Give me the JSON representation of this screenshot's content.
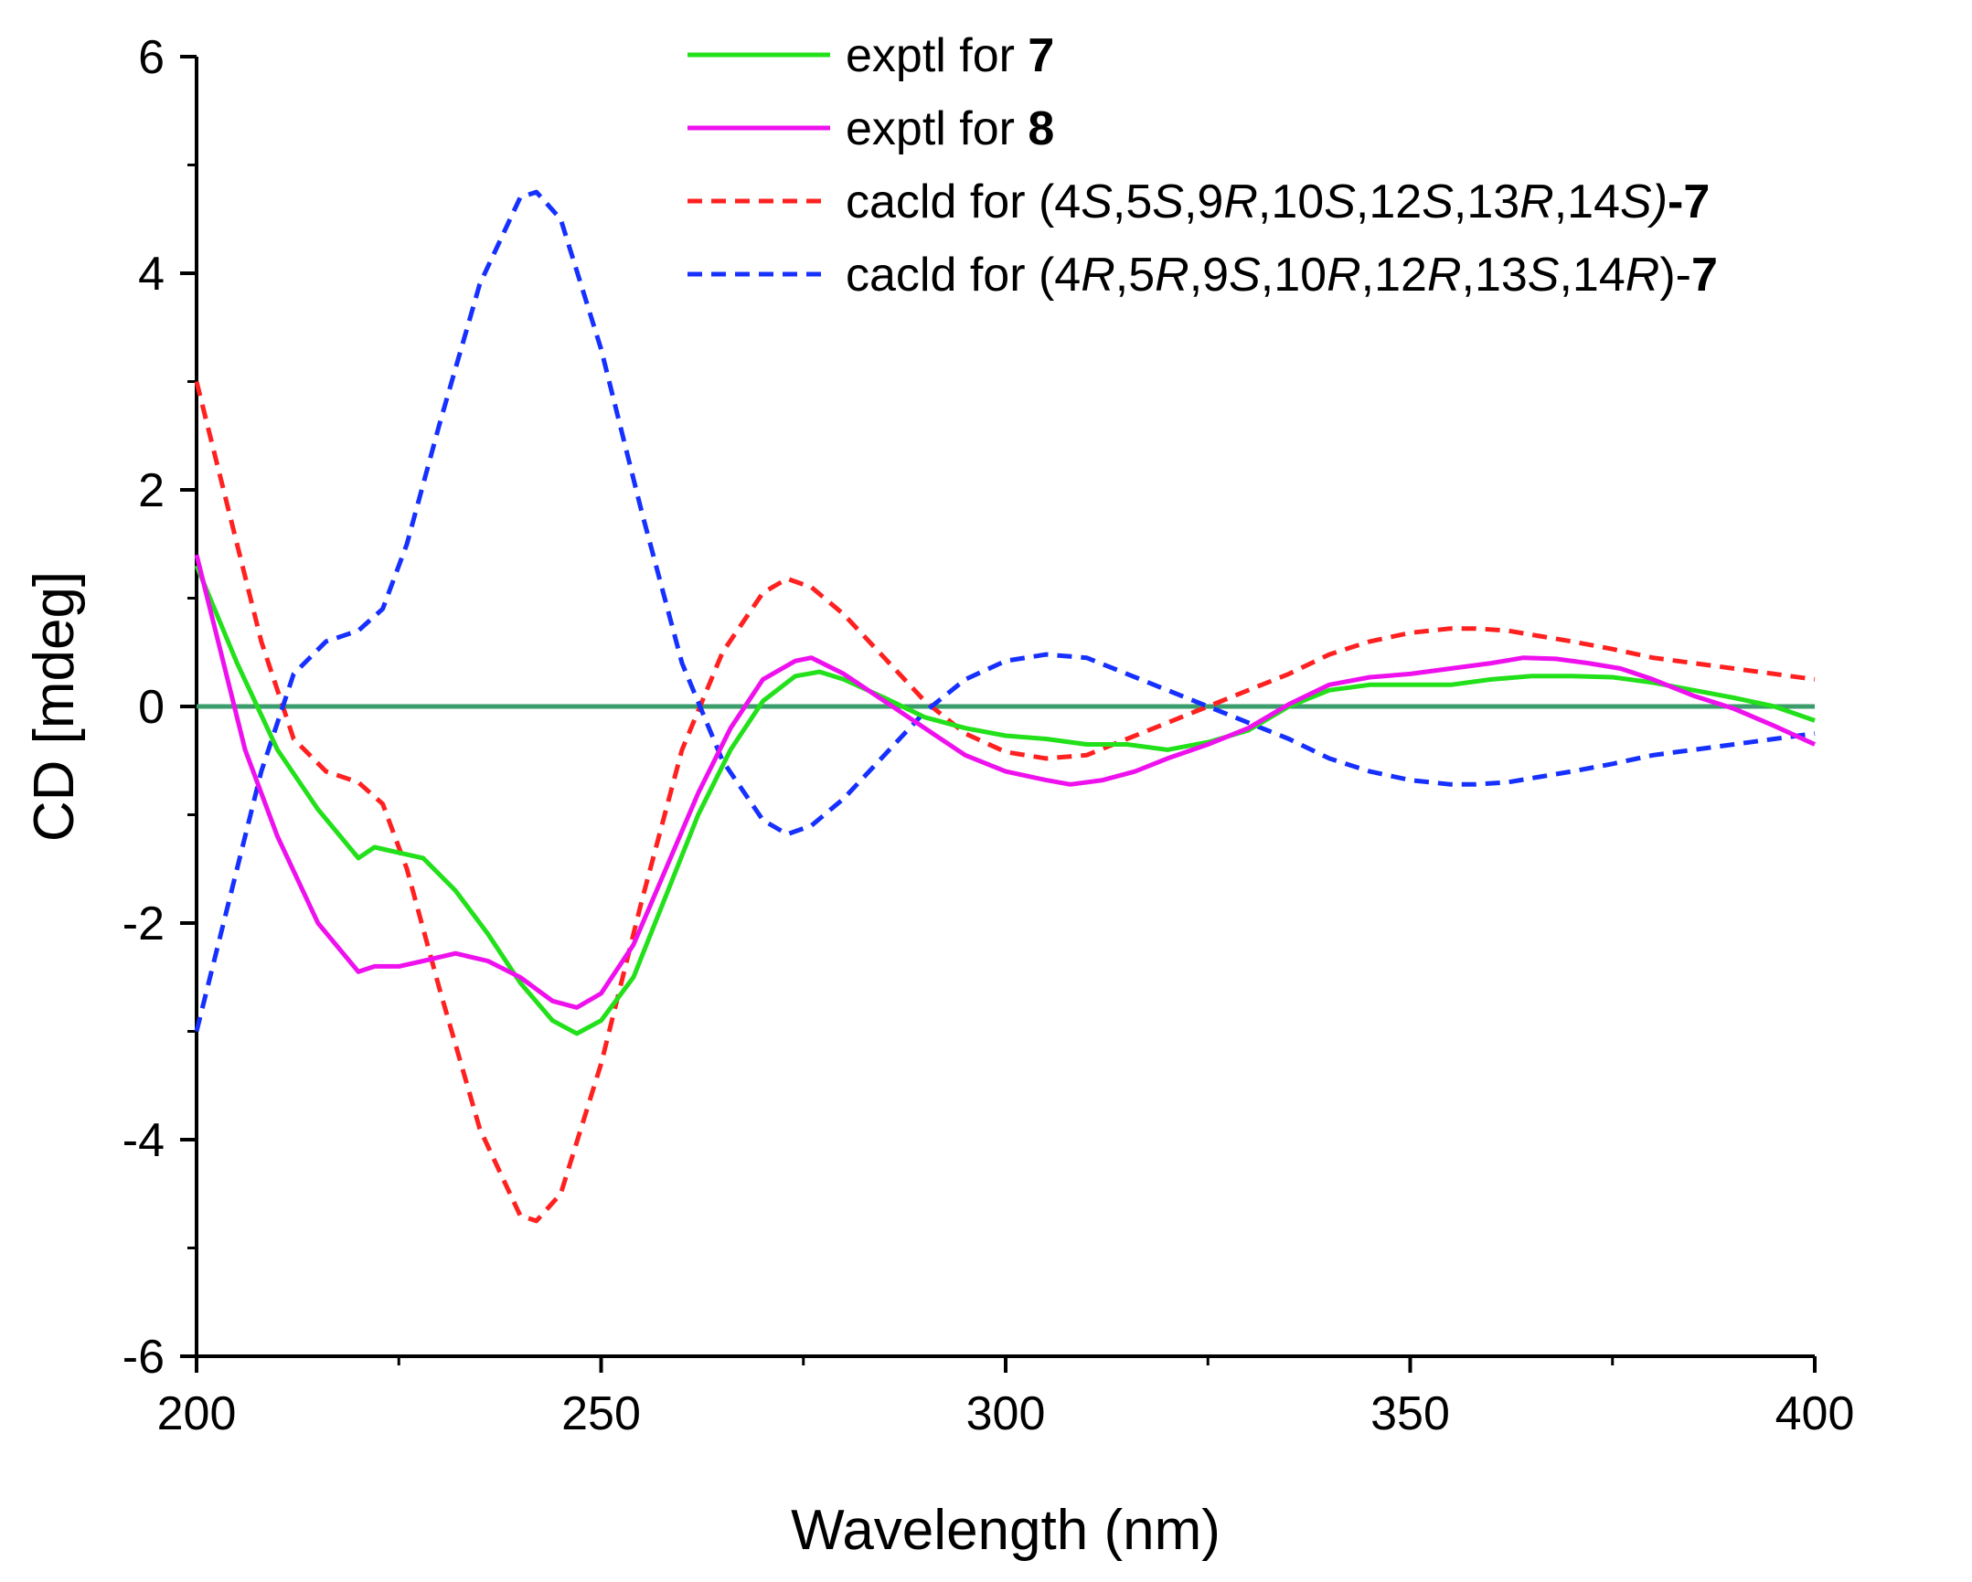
{
  "chart_data": {
    "type": "line",
    "title": "",
    "xlabel": "Wavelength (nm)",
    "ylabel": "CD [mdeg]",
    "xlim": [
      200,
      400
    ],
    "ylim": [
      -6,
      6
    ],
    "xticks": [
      200,
      250,
      300,
      350,
      400
    ],
    "yticks": [
      6,
      4,
      2,
      0,
      -2,
      -4,
      -6
    ],
    "xtick_labels": [
      "200",
      "250",
      "300",
      "350",
      "400"
    ],
    "ytick_labels": [
      "6",
      "4",
      "2",
      "0",
      "-2",
      "-4",
      "-6"
    ],
    "grid": false,
    "legend_position": "top-right",
    "baseline": {
      "y": 0,
      "color": "#3a9d6b"
    },
    "series": [
      {
        "id": "exptl7",
        "name": "exptl for 7",
        "legend": [
          {
            "t": "exptl for ",
            "s": ""
          },
          {
            "t": "7",
            "s": "bold"
          }
        ],
        "color": "#22e01a",
        "dash": "solid",
        "x": [
          200,
          205,
          210,
          215,
          220,
          222,
          225,
          228,
          232,
          236,
          240,
          244,
          247,
          250,
          254,
          258,
          262,
          266,
          270,
          274,
          277,
          280,
          285,
          290,
          295,
          300,
          305,
          310,
          315,
          320,
          325,
          330,
          335,
          340,
          345,
          350,
          355,
          360,
          365,
          370,
          375,
          380,
          385,
          390,
          395,
          400
        ],
        "y": [
          1.3,
          0.4,
          -0.4,
          -0.95,
          -1.4,
          -1.3,
          -1.35,
          -1.4,
          -1.7,
          -2.1,
          -2.55,
          -2.9,
          -3.02,
          -2.9,
          -2.5,
          -1.75,
          -1.0,
          -0.4,
          0.05,
          0.28,
          0.32,
          0.25,
          0.08,
          -0.1,
          -0.2,
          -0.27,
          -0.3,
          -0.35,
          -0.35,
          -0.4,
          -0.33,
          -0.22,
          0.0,
          0.15,
          0.2,
          0.2,
          0.2,
          0.25,
          0.28,
          0.28,
          0.27,
          0.22,
          0.15,
          0.08,
          0.0,
          -0.13
        ]
      },
      {
        "id": "exptl8",
        "name": "exptl for 8",
        "legend": [
          {
            "t": "exptl for ",
            "s": ""
          },
          {
            "t": "8",
            "s": "bold"
          }
        ],
        "color": "#ee11ee",
        "dash": "solid",
        "x": [
          200,
          203,
          206,
          210,
          215,
          220,
          222,
          225,
          228,
          232,
          236,
          240,
          244,
          247,
          250,
          254,
          258,
          262,
          266,
          270,
          274,
          276,
          280,
          285,
          290,
          295,
          300,
          305,
          308,
          312,
          316,
          320,
          325,
          330,
          335,
          340,
          345,
          350,
          355,
          360,
          364,
          368,
          372,
          376,
          380,
          385,
          390,
          395,
          400
        ],
        "y": [
          1.4,
          0.5,
          -0.4,
          -1.2,
          -2.0,
          -2.45,
          -2.4,
          -2.4,
          -2.35,
          -2.28,
          -2.35,
          -2.5,
          -2.72,
          -2.78,
          -2.65,
          -2.2,
          -1.5,
          -0.8,
          -0.2,
          0.25,
          0.42,
          0.45,
          0.3,
          0.05,
          -0.2,
          -0.45,
          -0.6,
          -0.68,
          -0.72,
          -0.68,
          -0.6,
          -0.48,
          -0.35,
          -0.2,
          0.02,
          0.2,
          0.27,
          0.3,
          0.35,
          0.4,
          0.45,
          0.44,
          0.4,
          0.35,
          0.25,
          0.1,
          -0.02,
          -0.18,
          -0.35
        ]
      },
      {
        "id": "calcdS",
        "name": "cacld for (4S,5S,9R,10S,12S,13R,14S)-7",
        "legend": [
          {
            "t": "cacld for (4",
            "s": ""
          },
          {
            "t": "S",
            "s": "ital"
          },
          {
            "t": ",5",
            "s": ""
          },
          {
            "t": "S",
            "s": "ital"
          },
          {
            "t": ",9",
            "s": ""
          },
          {
            "t": "R",
            "s": "ital"
          },
          {
            "t": ",10",
            "s": ""
          },
          {
            "t": "S",
            "s": "ital"
          },
          {
            "t": ",12",
            "s": ""
          },
          {
            "t": "S",
            "s": "ital"
          },
          {
            "t": ",13",
            "s": ""
          },
          {
            "t": "R",
            "s": "ital"
          },
          {
            "t": ",14",
            "s": ""
          },
          {
            "t": "S)",
            "s": "ital"
          },
          {
            "t": "-7",
            "s": "bold"
          }
        ],
        "color": "#ff2020",
        "dash": "dashed",
        "x": [
          200,
          204,
          208,
          212,
          216,
          220,
          223,
          226,
          230,
          235,
          240,
          242,
          245,
          250,
          255,
          260,
          265,
          270,
          273,
          276,
          280,
          285,
          290,
          295,
          300,
          305,
          310,
          315,
          320,
          325,
          330,
          335,
          340,
          345,
          350,
          355,
          358,
          362,
          366,
          370,
          375,
          380,
          385,
          390,
          395,
          400
        ],
        "y": [
          3.0,
          1.8,
          0.6,
          -0.3,
          -0.6,
          -0.7,
          -0.9,
          -1.5,
          -2.6,
          -3.9,
          -4.7,
          -4.75,
          -4.5,
          -3.3,
          -1.8,
          -0.4,
          0.5,
          1.05,
          1.18,
          1.1,
          0.85,
          0.45,
          0.05,
          -0.25,
          -0.42,
          -0.48,
          -0.45,
          -0.3,
          -0.15,
          0.0,
          0.15,
          0.3,
          0.48,
          0.6,
          0.68,
          0.72,
          0.72,
          0.7,
          0.65,
          0.6,
          0.53,
          0.45,
          0.4,
          0.35,
          0.3,
          0.25
        ]
      },
      {
        "id": "calcdR",
        "name": "cacld for (4R,5R,9S,10R,12R,13S,14R)-7",
        "legend": [
          {
            "t": "cacld for (4",
            "s": ""
          },
          {
            "t": "R",
            "s": "ital"
          },
          {
            "t": ",5",
            "s": ""
          },
          {
            "t": "R",
            "s": "ital"
          },
          {
            "t": ",9",
            "s": ""
          },
          {
            "t": "S",
            "s": "ital"
          },
          {
            "t": ",10",
            "s": ""
          },
          {
            "t": "R",
            "s": "ital"
          },
          {
            "t": ",12",
            "s": ""
          },
          {
            "t": "R",
            "s": "ital"
          },
          {
            "t": ",13",
            "s": ""
          },
          {
            "t": "S",
            "s": "ital"
          },
          {
            "t": ",14",
            "s": ""
          },
          {
            "t": "R",
            "s": "ital"
          },
          {
            "t": ")-",
            "s": ""
          },
          {
            "t": "7",
            "s": "bold"
          }
        ],
        "color": "#1530ff",
        "dash": "dashed",
        "x": [
          200,
          204,
          208,
          212,
          216,
          220,
          223,
          226,
          230,
          235,
          240,
          242,
          245,
          250,
          255,
          260,
          265,
          270,
          273,
          276,
          280,
          285,
          290,
          295,
          300,
          305,
          310,
          315,
          320,
          325,
          330,
          335,
          340,
          345,
          350,
          355,
          358,
          362,
          366,
          370,
          375,
          380,
          385,
          390,
          395,
          400
        ],
        "y": [
          -3.0,
          -1.8,
          -0.6,
          0.3,
          0.6,
          0.7,
          0.9,
          1.5,
          2.6,
          3.9,
          4.7,
          4.75,
          4.5,
          3.3,
          1.8,
          0.4,
          -0.5,
          -1.05,
          -1.18,
          -1.1,
          -0.85,
          -0.45,
          -0.05,
          0.25,
          0.42,
          0.48,
          0.45,
          0.3,
          0.15,
          0.0,
          -0.15,
          -0.3,
          -0.48,
          -0.6,
          -0.68,
          -0.72,
          -0.72,
          -0.7,
          -0.65,
          -0.6,
          -0.53,
          -0.45,
          -0.4,
          -0.35,
          -0.3,
          -0.25
        ]
      }
    ]
  }
}
